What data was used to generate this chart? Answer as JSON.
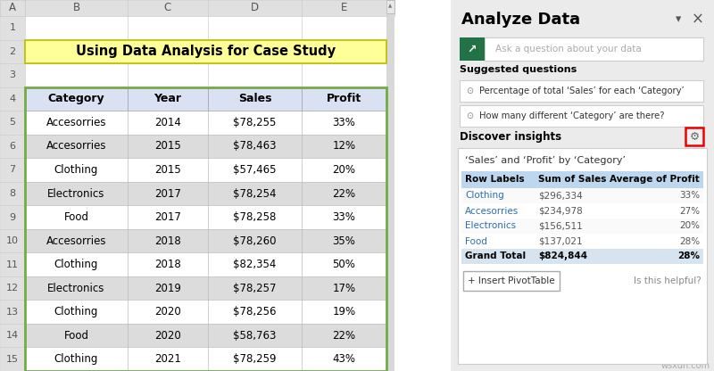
{
  "title": "Using Data Analysis for Case Study",
  "title_bg": "#FFFF99",
  "excel_bg": "#FFFFFF",
  "excel_header_bg": "#D9E1F2",
  "excel_row_alt1": "#FFFFFF",
  "excel_row_alt2": "#DCDCDC",
  "excel_border_color": "#70AD47",
  "col_header_bg": "#E0E0E0",
  "col_letters": [
    "A",
    "B",
    "C",
    "D",
    "E"
  ],
  "excel_col_headers": [
    "Category",
    "Year",
    "Sales",
    "Profit"
  ],
  "excel_rows": [
    [
      "Accesorries",
      "2014",
      "$78,255",
      "33%"
    ],
    [
      "Accesorries",
      "2015",
      "$78,463",
      "12%"
    ],
    [
      "Clothing",
      "2015",
      "$57,465",
      "20%"
    ],
    [
      "Electronics",
      "2017",
      "$78,254",
      "22%"
    ],
    [
      "Food",
      "2017",
      "$78,258",
      "33%"
    ],
    [
      "Accesorries",
      "2018",
      "$78,260",
      "35%"
    ],
    [
      "Clothing",
      "2018",
      "$82,354",
      "50%"
    ],
    [
      "Electronics",
      "2019",
      "$78,257",
      "17%"
    ],
    [
      "Clothing",
      "2020",
      "$78,256",
      "19%"
    ],
    [
      "Food",
      "2020",
      "$58,763",
      "22%"
    ],
    [
      "Clothing",
      "2021",
      "$78,259",
      "43%"
    ]
  ],
  "panel_bg": "#EBEBEB",
  "panel_title": "Analyze Data",
  "search_bg": "#217346",
  "search_placeholder": "Ask a question about your data",
  "suggested_label": "Suggested questions",
  "suggested_q1": "Percentage of total ‘Sales’ for each ‘Category’",
  "suggested_q2": "How many different ‘Category’ are there?",
  "discover_label": "Discover insights",
  "insight_title": "‘Sales’ and ‘Profit’ by ‘Category’",
  "insight_header_bg": "#BDD7EE",
  "insight_grand_bg": "#D6E4F0",
  "insight_headers": [
    "Row Labels",
    "Sum of Sales",
    "Average of Profit"
  ],
  "insight_rows": [
    [
      "Clothing",
      "$296,334",
      "33%"
    ],
    [
      "Accesorries",
      "$234,978",
      "27%"
    ],
    [
      "Electronics",
      "$156,511",
      "20%"
    ],
    [
      "Food",
      "$137,021",
      "28%"
    ]
  ],
  "insight_total": [
    "Grand Total",
    "$824,844",
    "28%"
  ],
  "insert_btn": "+ Insert PivotTable",
  "helpful_text": "Is this helpful?",
  "watermark": "wsxdn.com"
}
